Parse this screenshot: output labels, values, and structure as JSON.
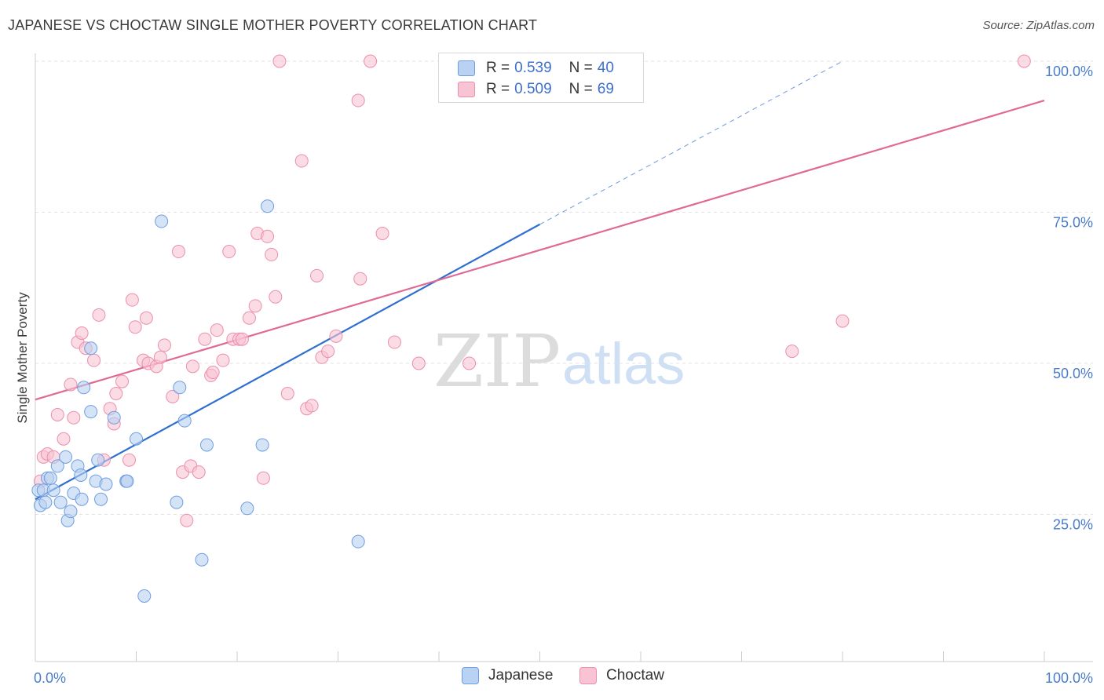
{
  "header": {
    "title": "JAPANESE VS CHOCTAW SINGLE MOTHER POVERTY CORRELATION CHART",
    "source": "Source: ZipAtlas.com"
  },
  "watermark": {
    "zip": "ZIP",
    "atlas": "atlas"
  },
  "legend": {
    "rows": [
      {
        "r_label": "R =",
        "r_value": "0.539",
        "n_label": "N =",
        "n_value": "40"
      },
      {
        "r_label": "R =",
        "r_value": "0.509",
        "n_label": "N =",
        "n_value": "69"
      }
    ]
  },
  "bottom_legend": {
    "japanese": "Japanese",
    "choctaw": "Choctaw"
  },
  "colors": {
    "japanese_fill": "#b9d1f2",
    "japanese_stroke": "#6e9ee0",
    "japanese_line": "#2f6fcf",
    "choctaw_fill": "#f8c3d2",
    "choctaw_stroke": "#eb8fad",
    "choctaw_line": "#e06a93",
    "tick_text": "#4a7cc9",
    "grid": "#e3e3e3"
  },
  "chart_data": {
    "type": "scatter",
    "title": "JAPANESE VS CHOCTAW SINGLE MOTHER POVERTY CORRELATION CHART",
    "xlabel": "",
    "ylabel": "Single Mother Poverty",
    "xlim": [
      0,
      100
    ],
    "ylim": [
      0,
      100
    ],
    "x_tick_labels": [
      {
        "value": 0,
        "label": "0.0%"
      },
      {
        "value": 100,
        "label": "100.0%"
      }
    ],
    "y_tick_labels": [
      {
        "value": 25,
        "label": "25.0%"
      },
      {
        "value": 50,
        "label": "50.0%"
      },
      {
        "value": 75,
        "label": "75.0%"
      },
      {
        "value": 100,
        "label": "100.0%"
      }
    ],
    "grid": true,
    "legend_position": "top-center",
    "series": [
      {
        "name": "Japanese",
        "r": 0.539,
        "n": 40,
        "trend": {
          "x0": 0,
          "y0": 27.5,
          "x1": 50,
          "y1": 73.0,
          "dashed_to_x": 80,
          "dashed_to_y": 100
        },
        "points": [
          [
            0.3,
            29
          ],
          [
            0.5,
            26.5
          ],
          [
            0.8,
            29
          ],
          [
            1,
            27
          ],
          [
            1.2,
            31
          ],
          [
            1.5,
            31
          ],
          [
            1.8,
            29
          ],
          [
            2.2,
            33
          ],
          [
            2.5,
            27
          ],
          [
            3,
            34.5
          ],
          [
            3.2,
            24
          ],
          [
            3.5,
            25.5
          ],
          [
            3.8,
            28.5
          ],
          [
            4.2,
            33
          ],
          [
            4.5,
            31.5
          ],
          [
            4.6,
            27.5
          ],
          [
            4.8,
            46
          ],
          [
            5.5,
            42
          ],
          [
            5.5,
            52.5
          ],
          [
            6,
            30.5
          ],
          [
            6.2,
            34
          ],
          [
            6.5,
            27.5
          ],
          [
            7,
            30
          ],
          [
            7.8,
            41
          ],
          [
            9,
            30.5
          ],
          [
            9.1,
            30.5
          ],
          [
            10,
            37.5
          ],
          [
            10.8,
            11.5
          ],
          [
            12.5,
            73.5
          ],
          [
            14,
            27
          ],
          [
            14.3,
            46
          ],
          [
            14.8,
            40.5
          ],
          [
            16.5,
            17.5
          ],
          [
            17,
            36.5
          ],
          [
            21,
            26
          ],
          [
            22.5,
            36.5
          ],
          [
            23,
            76
          ],
          [
            32,
            20.5
          ],
          [
            46,
            100
          ],
          [
            47,
            100
          ]
        ]
      },
      {
        "name": "Choctaw",
        "r": 0.509,
        "n": 69,
        "trend": {
          "x0": 0,
          "y0": 44,
          "x1": 100,
          "y1": 93.5
        },
        "points": [
          [
            0.5,
            30.5
          ],
          [
            0.8,
            34.5
          ],
          [
            1.2,
            35
          ],
          [
            1.8,
            34.5
          ],
          [
            2.2,
            41.5
          ],
          [
            2.8,
            37.5
          ],
          [
            3.5,
            46.5
          ],
          [
            3.8,
            41
          ],
          [
            4.2,
            53.5
          ],
          [
            4.6,
            55
          ],
          [
            5,
            52.5
          ],
          [
            5.8,
            50.5
          ],
          [
            6.3,
            58
          ],
          [
            6.8,
            34
          ],
          [
            7.4,
            42.5
          ],
          [
            7.8,
            40
          ],
          [
            8,
            45
          ],
          [
            8.6,
            47
          ],
          [
            9.3,
            34
          ],
          [
            9.6,
            60.5
          ],
          [
            9.9,
            56
          ],
          [
            10.7,
            50.5
          ],
          [
            11,
            57.5
          ],
          [
            11.2,
            50
          ],
          [
            12,
            49.5
          ],
          [
            12.4,
            51
          ],
          [
            12.8,
            53
          ],
          [
            13.6,
            44.5
          ],
          [
            14.2,
            68.5
          ],
          [
            14.6,
            32
          ],
          [
            15.4,
            33
          ],
          [
            15.6,
            49.5
          ],
          [
            16.2,
            32
          ],
          [
            16.8,
            54
          ],
          [
            17.4,
            48
          ],
          [
            17.6,
            48.5
          ],
          [
            18,
            55.5
          ],
          [
            18.6,
            50.5
          ],
          [
            19.2,
            68.5
          ],
          [
            19.6,
            54
          ],
          [
            20.2,
            54
          ],
          [
            20.5,
            54
          ],
          [
            21.2,
            57.5
          ],
          [
            21.8,
            59.5
          ],
          [
            22,
            71.5
          ],
          [
            22.6,
            31
          ],
          [
            23,
            71
          ],
          [
            23.4,
            68
          ],
          [
            23.8,
            61
          ],
          [
            24.2,
            100
          ],
          [
            25,
            45
          ],
          [
            26.4,
            83.5
          ],
          [
            26.9,
            42.5
          ],
          [
            27.4,
            43
          ],
          [
            27.9,
            64.5
          ],
          [
            28.4,
            51
          ],
          [
            29,
            52
          ],
          [
            29.8,
            54.5
          ],
          [
            32,
            93.5
          ],
          [
            32.2,
            64
          ],
          [
            33.2,
            100
          ],
          [
            34.4,
            71.5
          ],
          [
            35.6,
            53.5
          ],
          [
            38,
            50
          ],
          [
            43,
            50
          ],
          [
            75,
            52
          ],
          [
            80,
            57
          ],
          [
            98,
            100
          ],
          [
            15,
            24
          ]
        ]
      }
    ]
  }
}
